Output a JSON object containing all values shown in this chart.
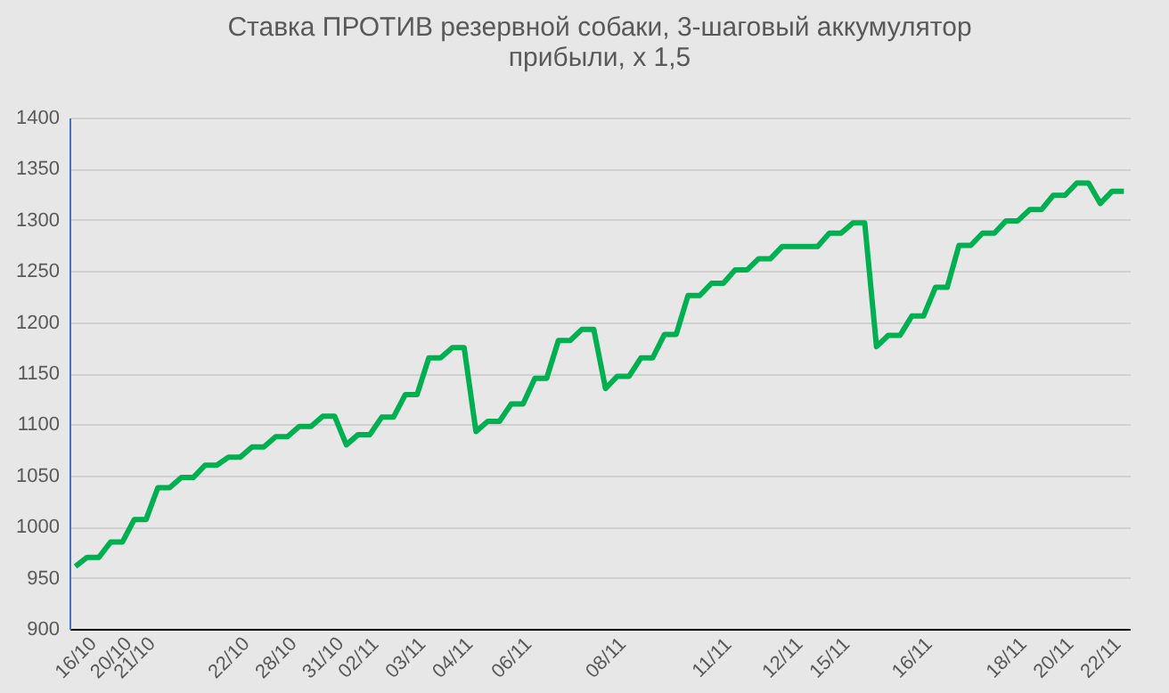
{
  "chart_data": {
    "type": "line",
    "title": "Ставка ПРОТИВ резервной собаки, 3-шаговый аккумулятор\nприбыли, х 1,5",
    "categories": [
      "16/10",
      null,
      null,
      "20/10",
      null,
      "21/10",
      null,
      null,
      null,
      null,
      null,
      null,
      null,
      "22/10",
      null,
      null,
      null,
      "28/10",
      null,
      null,
      null,
      "31/10",
      null,
      null,
      "02/11",
      null,
      null,
      null,
      "03/11",
      null,
      null,
      null,
      "04/11",
      null,
      null,
      null,
      null,
      "06/11",
      null,
      null,
      null,
      null,
      null,
      null,
      null,
      "08/11",
      null,
      null,
      null,
      null,
      null,
      null,
      null,
      null,
      "11/11",
      null,
      null,
      null,
      null,
      null,
      "12/11",
      null,
      null,
      null,
      "15/11",
      null,
      null,
      null,
      null,
      null,
      null,
      "16/11",
      null,
      null,
      null,
      null,
      null,
      null,
      null,
      "18/11",
      null,
      null,
      null,
      "20/11",
      null,
      null,
      null,
      "22/11",
      null,
      null
    ],
    "series": [
      {
        "color": "#00b050",
        "values": [
          961,
          970,
          970,
          985,
          985,
          1007,
          1007,
          1038,
          1038,
          1048,
          1048,
          1060,
          1060,
          1068,
          1068,
          1078,
          1078,
          1088,
          1088,
          1098,
          1098,
          1108,
          1108,
          1080,
          1090,
          1090,
          1107,
          1107,
          1129,
          1129,
          1165,
          1165,
          1175,
          1175,
          1093,
          1103,
          1103,
          1120,
          1120,
          1145,
          1145,
          1182,
          1182,
          1193,
          1193,
          1135,
          1147,
          1147,
          1165,
          1165,
          1188,
          1188,
          1226,
          1226,
          1238,
          1238,
          1251,
          1251,
          1262,
          1262,
          1274,
          1274,
          1274,
          1274,
          1287,
          1287,
          1297,
          1297,
          1176,
          1187,
          1187,
          1206,
          1206,
          1234,
          1234,
          1275,
          1275,
          1287,
          1287,
          1299,
          1299,
          1310,
          1310,
          1324,
          1324,
          1336,
          1336,
          1316,
          1328,
          1328
        ]
      }
    ],
    "ylim": [
      900,
      1400
    ],
    "yticks": [
      900,
      950,
      1000,
      1050,
      1100,
      1150,
      1200,
      1250,
      1300,
      1350,
      1400
    ],
    "grid": "y",
    "line_style": "solid"
  }
}
